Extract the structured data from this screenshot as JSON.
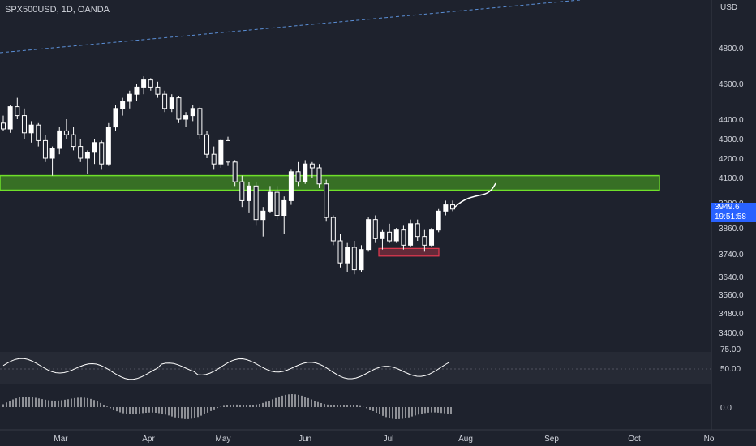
{
  "header": {
    "symbol": "SPX500USD, 1D, OANDA",
    "currency": "USD"
  },
  "last_price": {
    "value": "3949.6",
    "countdown": "19:51:58"
  },
  "colors": {
    "background": "#1e222d",
    "candle": "#ffffff",
    "support_zone": "#4caf1f",
    "demand_box": "#e53950",
    "price_tag": "#2962ff",
    "trendline": "#5b8fd6"
  },
  "chart_data": [
    {
      "type": "candlestick",
      "title": "SPX500USD, 1D, OANDA",
      "y_unit": "USD",
      "y_tick_labels": [
        "4800.0",
        "4600.0",
        "4400.0",
        "4300.0",
        "4200.0",
        "4100.0",
        "3980.0",
        "3860.0",
        "3740.0",
        "3640.0",
        "3560.0",
        "3480.0",
        "3400.0"
      ],
      "x_tick_labels": [
        "Mar",
        "Apr",
        "May",
        "Jun",
        "Jul",
        "Aug",
        "Sep",
        "Oct",
        "No"
      ],
      "ohlc_approx": [
        [
          4380,
          4420,
          4340,
          4350
        ],
        [
          4350,
          4480,
          4330,
          4470
        ],
        [
          4470,
          4520,
          4400,
          4420
        ],
        [
          4420,
          4460,
          4300,
          4330
        ],
        [
          4330,
          4390,
          4280,
          4370
        ],
        [
          4370,
          4380,
          4260,
          4290
        ],
        [
          4290,
          4320,
          4180,
          4200
        ],
        [
          4200,
          4260,
          4110,
          4250
        ],
        [
          4250,
          4360,
          4220,
          4340
        ],
        [
          4340,
          4400,
          4300,
          4320
        ],
        [
          4320,
          4360,
          4240,
          4260
        ],
        [
          4260,
          4300,
          4180,
          4200
        ],
        [
          4200,
          4240,
          4120,
          4230
        ],
        [
          4230,
          4300,
          4170,
          4280
        ],
        [
          4280,
          4290,
          4140,
          4170
        ],
        [
          4170,
          4380,
          4160,
          4360
        ],
        [
          4360,
          4480,
          4340,
          4460
        ],
        [
          4460,
          4520,
          4420,
          4500
        ],
        [
          4500,
          4560,
          4460,
          4540
        ],
        [
          4540,
          4600,
          4500,
          4580
        ],
        [
          4580,
          4640,
          4540,
          4620
        ],
        [
          4620,
          4630,
          4560,
          4580
        ],
        [
          4580,
          4610,
          4520,
          4540
        ],
        [
          4540,
          4560,
          4440,
          4460
        ],
        [
          4460,
          4540,
          4440,
          4520
        ],
        [
          4520,
          4530,
          4380,
          4400
        ],
        [
          4400,
          4440,
          4360,
          4420
        ],
        [
          4420,
          4480,
          4390,
          4460
        ],
        [
          4460,
          4470,
          4300,
          4320
        ],
        [
          4320,
          4340,
          4200,
          4220
        ],
        [
          4220,
          4260,
          4140,
          4170
        ],
        [
          4170,
          4300,
          4150,
          4290
        ],
        [
          4290,
          4310,
          4160,
          4180
        ],
        [
          4180,
          4190,
          4060,
          4080
        ],
        [
          4080,
          4110,
          3960,
          3990
        ],
        [
          3990,
          4080,
          3930,
          4060
        ],
        [
          4060,
          4080,
          3870,
          3900
        ],
        [
          3900,
          3960,
          3820,
          3940
        ],
        [
          3940,
          4060,
          3930,
          4030
        ],
        [
          4030,
          4060,
          3900,
          3920
        ],
        [
          3920,
          4010,
          3830,
          3990
        ],
        [
          3990,
          4140,
          3970,
          4130
        ],
        [
          4130,
          4180,
          4060,
          4080
        ],
        [
          4080,
          4190,
          4070,
          4170
        ],
        [
          4170,
          4180,
          4100,
          4150
        ],
        [
          4150,
          4170,
          4050,
          4070
        ],
        [
          4070,
          4090,
          3890,
          3910
        ],
        [
          3910,
          3920,
          3780,
          3800
        ],
        [
          3800,
          3830,
          3680,
          3700
        ],
        [
          3700,
          3790,
          3660,
          3770
        ],
        [
          3770,
          3800,
          3650,
          3670
        ],
        [
          3670,
          3780,
          3660,
          3760
        ],
        [
          3760,
          3910,
          3750,
          3900
        ],
        [
          3900,
          3920,
          3790,
          3810
        ],
        [
          3810,
          3850,
          3760,
          3840
        ],
        [
          3840,
          3880,
          3790,
          3800
        ],
        [
          3800,
          3860,
          3790,
          3850
        ],
        [
          3850,
          3870,
          3760,
          3780
        ],
        [
          3780,
          3900,
          3770,
          3880
        ],
        [
          3880,
          3900,
          3800,
          3820
        ],
        [
          3820,
          3850,
          3750,
          3780
        ],
        [
          3780,
          3860,
          3770,
          3850
        ],
        [
          3850,
          3950,
          3840,
          3940
        ],
        [
          3940,
          3990,
          3920,
          3970
        ],
        [
          3970,
          3990,
          3940,
          3950
        ]
      ],
      "support_zone": {
        "low": 4040,
        "high": 4110
      },
      "demand_zone": {
        "low": 3730,
        "high": 3765
      }
    },
    {
      "type": "line",
      "name": "oscillator",
      "y_tick_labels": [
        "75.00",
        "50.00"
      ]
    },
    {
      "type": "histogram",
      "name": "histogram",
      "y_tick_labels": [
        "0.0"
      ]
    }
  ]
}
